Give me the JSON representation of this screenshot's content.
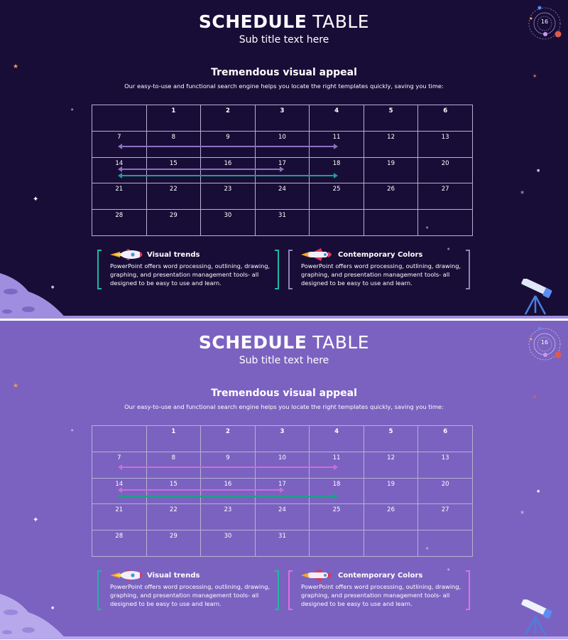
{
  "slides": [
    {
      "theme": "dark",
      "background": "#180d37",
      "title_bold": "SCHEDULE",
      "title_light": "TABLE",
      "subtitle": "Sub title text here",
      "heading": "Tremendous visual appeal",
      "description": "Our easy-to-use and functional search engine helps you locate the right templates quickly, saving you time:",
      "page_number": "16",
      "table": [
        [
          "",
          "1",
          "2",
          "3",
          "4",
          "5",
          "6"
        ],
        [
          "7",
          "8",
          "9",
          "10",
          "11",
          "12",
          "13"
        ],
        [
          "14",
          "15",
          "16",
          "17",
          "18",
          "19",
          "20"
        ],
        [
          "21",
          "22",
          "23",
          "24",
          "25",
          "26",
          "27"
        ],
        [
          "28",
          "29",
          "30",
          "31",
          "",
          "",
          ""
        ]
      ],
      "bar_colors": [
        "#8a72c0",
        "#8a72c0",
        "#1aa095"
      ],
      "cards": [
        {
          "title": "Visual trends",
          "text": "PowerPoint offers word processing, outlining, drawing, graphing, and presentation management tools- all designed to be easy to use and learn.",
          "bracket_color": "#1fb7a4",
          "icon": "rocket-icon"
        },
        {
          "title": "Contemporary Colors",
          "text": "PowerPoint offers word processing, outlining, drawing, graphing, and presentation management tools- all designed to be easy to use and learn.",
          "bracket_color": "#8a86b6",
          "icon": "space-shuttle-icon"
        }
      ]
    },
    {
      "theme": "light",
      "background": "#7b62c0",
      "title_bold": "SCHEDULE",
      "title_light": "TABLE",
      "subtitle": "Sub title text here",
      "heading": "Tremendous visual appeal",
      "description": "Our easy-to-use and functional search engine helps you locate the right templates quickly, saving you time:",
      "page_number": "16",
      "table": [
        [
          "",
          "1",
          "2",
          "3",
          "4",
          "5",
          "6"
        ],
        [
          "7",
          "8",
          "9",
          "10",
          "11",
          "12",
          "13"
        ],
        [
          "14",
          "15",
          "16",
          "17",
          "18",
          "19",
          "20"
        ],
        [
          "21",
          "22",
          "23",
          "24",
          "25",
          "26",
          "27"
        ],
        [
          "28",
          "29",
          "30",
          "31",
          "",
          "",
          ""
        ]
      ],
      "bar_colors": [
        "#c86fd8",
        "#c86fd8",
        "#1f9f8a"
      ],
      "cards": [
        {
          "title": "Visual trends",
          "text": "PowerPoint offers word processing, outlining, drawing, graphing, and presentation management tools- all designed to be easy to use and learn.",
          "bracket_color": "#1fb7a4",
          "icon": "rocket-icon"
        },
        {
          "title": "Contemporary Colors",
          "text": "PowerPoint offers word processing, outlining, drawing, graphing, and presentation management tools- all designed to be easy to use and learn.",
          "bracket_color": "#e070e0",
          "icon": "space-shuttle-icon"
        }
      ]
    }
  ]
}
